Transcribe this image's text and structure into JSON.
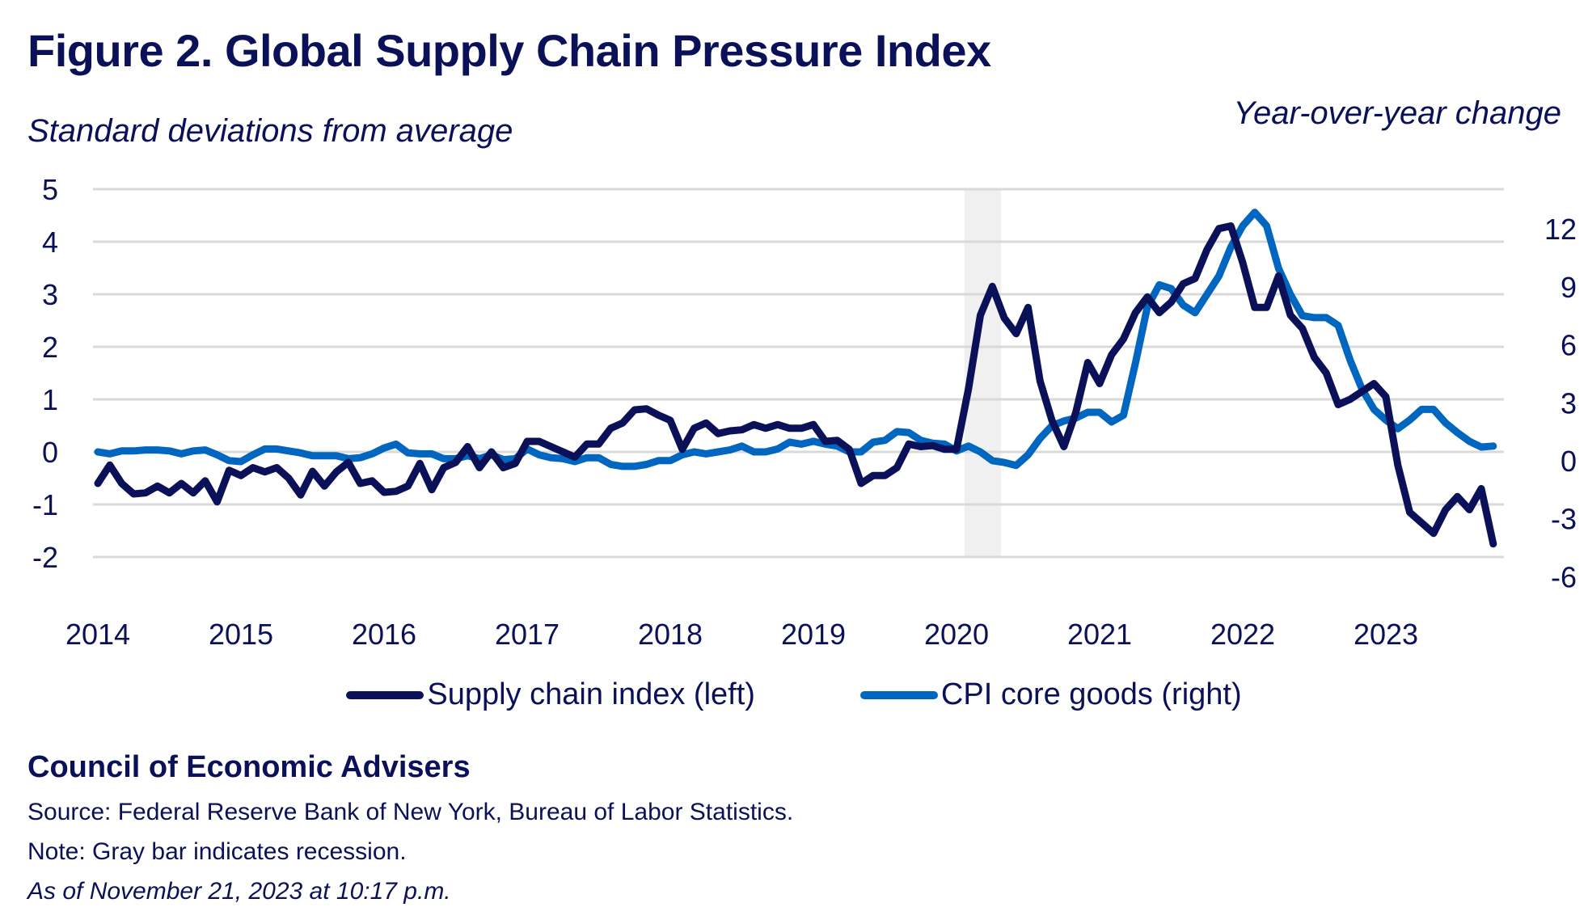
{
  "header": {
    "title": "Figure 2. Global Supply Chain Pressure Index",
    "subtitle_left": "Standard deviations from average",
    "subtitle_right": "Year-over-year change"
  },
  "colors": {
    "text": "#0b1158",
    "supply_chain": "#0b1158",
    "cpi": "#0066c0",
    "grid": "#d9d9d9",
    "recession": "#f0f0f0"
  },
  "chart_data": {
    "type": "line",
    "title": "Figure 2. Global Supply Chain Pressure Index",
    "ylabel_left": "Standard deviations from average",
    "ylabel_right": "Year-over-year change",
    "xlabel": "",
    "x_start": "2014-01",
    "x_end": "2023-10",
    "frequency": "monthly",
    "x_ticks": [
      "2014",
      "2015",
      "2016",
      "2017",
      "2018",
      "2019",
      "2020",
      "2021",
      "2022",
      "2023"
    ],
    "y_left": {
      "ticks": [
        "5",
        "4",
        "3",
        "2",
        "1",
        "0",
        "-1",
        "-2"
      ],
      "ylim": [
        -2,
        5
      ]
    },
    "y_right": {
      "ticks": [
        "12",
        "9",
        "6",
        "3",
        "0",
        "-3",
        "-6"
      ],
      "ylim": [
        -6,
        13.6
      ]
    },
    "grid": true,
    "legend_position": "bottom",
    "recession": {
      "start": "2020-02",
      "end": "2020-04"
    },
    "series": [
      {
        "name": "Supply chain index (left)",
        "axis": "left",
        "values": [
          -0.6,
          -0.25,
          -0.6,
          -0.8,
          -0.78,
          -0.65,
          -0.78,
          -0.6,
          -0.78,
          -0.55,
          -0.95,
          -0.35,
          -0.45,
          -0.3,
          -0.38,
          -0.3,
          -0.5,
          -0.82,
          -0.37,
          -0.65,
          -0.38,
          -0.2,
          -0.6,
          -0.55,
          -0.77,
          -0.75,
          -0.65,
          -0.22,
          -0.72,
          -0.3,
          -0.2,
          0.1,
          -0.3,
          0,
          -0.3,
          -0.22,
          0.2,
          0.2,
          0.1,
          0,
          -0.1,
          0.15,
          0.15,
          0.45,
          0.55,
          0.8,
          0.82,
          0.7,
          0.6,
          0.05,
          0.45,
          0.55,
          0.35,
          0.4,
          0.42,
          0.52,
          0.45,
          0.52,
          0.45,
          0.45,
          0.52,
          0.2,
          0.22,
          0.05,
          -0.6,
          -0.45,
          -0.45,
          -0.3,
          0.15,
          0.1,
          0.12,
          0.05,
          0.05,
          1.2,
          2.6,
          3.15,
          2.55,
          2.25,
          2.75,
          1.35,
          0.6,
          0.1,
          0.75,
          1.7,
          1.3,
          1.85,
          2.15,
          2.65,
          2.95,
          2.65,
          2.85,
          3.2,
          3.3,
          3.85,
          4.25,
          4.3,
          3.6,
          2.75,
          2.75,
          3.35,
          2.6,
          2.35,
          1.8,
          1.5,
          0.9,
          1.0,
          1.15,
          1.3,
          1.05,
          -0.25,
          -1.15,
          -1.35,
          -1.55,
          -1.1,
          -0.85,
          -1.1,
          -0.7,
          -1.75
        ]
      },
      {
        "name": "CPI core goods (right)",
        "axis": "right",
        "values": [
          0,
          -0.1,
          0.05,
          0.05,
          0.1,
          0.1,
          0.05,
          -0.1,
          0.05,
          0.1,
          -0.15,
          -0.45,
          -0.5,
          -0.15,
          0.15,
          0.15,
          0.05,
          -0.05,
          -0.2,
          -0.2,
          -0.2,
          -0.35,
          -0.3,
          -0.1,
          0.2,
          0.4,
          -0.05,
          -0.1,
          -0.1,
          -0.35,
          -0.35,
          -0.2,
          -0.35,
          -0.15,
          -0.4,
          -0.35,
          0.15,
          -0.15,
          -0.3,
          -0.35,
          -0.5,
          -0.3,
          -0.3,
          -0.65,
          -0.75,
          -0.75,
          -0.65,
          -0.45,
          -0.45,
          -0.15,
          0,
          -0.1,
          0,
          0.1,
          0.3,
          0,
          0,
          0.15,
          0.5,
          0.4,
          0.55,
          0.4,
          0.3,
          0,
          0,
          0.5,
          0.6,
          1.05,
          1.0,
          0.6,
          0.45,
          0.4,
          0.05,
          0.3,
          0,
          -0.45,
          -0.55,
          -0.7,
          -0.15,
          0.7,
          1.35,
          1.6,
          1.75,
          2.05,
          2.05,
          1.55,
          1.9,
          4.6,
          7.5,
          8.65,
          8.45,
          7.6,
          7.2,
          8.15,
          9.1,
          10.6,
          11.7,
          12.4,
          11.7,
          9.5,
          8.15,
          7.05,
          6.95,
          6.95,
          6.55,
          4.75,
          3.25,
          2.2,
          1.65,
          1.2,
          1.65,
          2.2,
          2.2,
          1.5,
          1.0,
          0.55,
          0.25,
          0.3
        ]
      }
    ]
  },
  "legend": {
    "items": [
      {
        "label": "Supply chain index (left)",
        "color": "#0b1158"
      },
      {
        "label": "CPI core goods (right)",
        "color": "#0066c0"
      }
    ]
  },
  "footer": {
    "organization": "Council of Economic Advisers",
    "source": "Source: Federal Reserve Bank of New York, Bureau of Labor Statistics.",
    "note": "Note: Gray bar indicates recession.",
    "as_of": "As of November 21, 2023 at 10:17 p.m."
  }
}
